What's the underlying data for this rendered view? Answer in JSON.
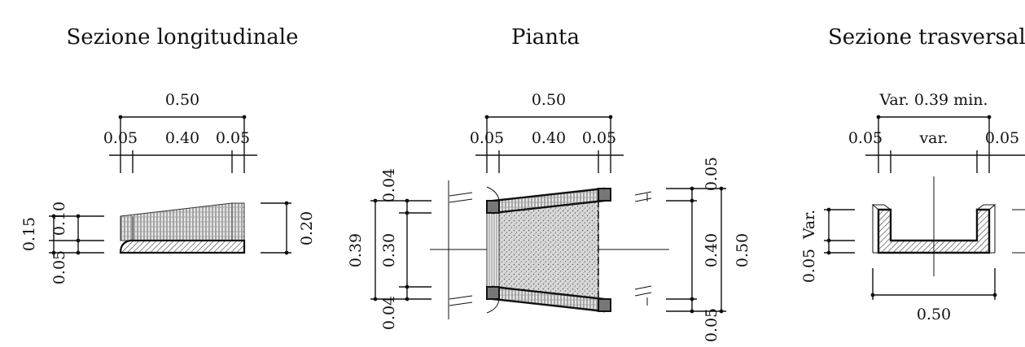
{
  "titles": {
    "longitudinal": "Sezione longitudinale",
    "plan": "Pianta",
    "transverse": "Sezione trasversal"
  },
  "longitudinal": {
    "top_total": "0.50",
    "top_left": "0.05",
    "top_mid": "0.40",
    "top_right": "0.05",
    "left_total": "0.15",
    "left_upper": "0.10",
    "left_lower": "0.05",
    "right_height": "0.20"
  },
  "plan": {
    "top_total": "0.50",
    "top_left": "0.05",
    "top_mid": "0.40",
    "top_right": "0.05",
    "left_total": "0.39",
    "left_top": "0.04",
    "left_mid": "0.30",
    "left_bottom": "0.04",
    "right_top": "0.05",
    "right_mid": "0.40",
    "right_bottom": "0.05",
    "right_total": "0.50"
  },
  "transverse": {
    "top_total": "Var. 0.39 min.",
    "top_left": "0.05",
    "top_mid": "var.",
    "top_right": "0.05",
    "left_var": "Var.",
    "left_lower": "0.05",
    "bottom_total": "0.50"
  }
}
